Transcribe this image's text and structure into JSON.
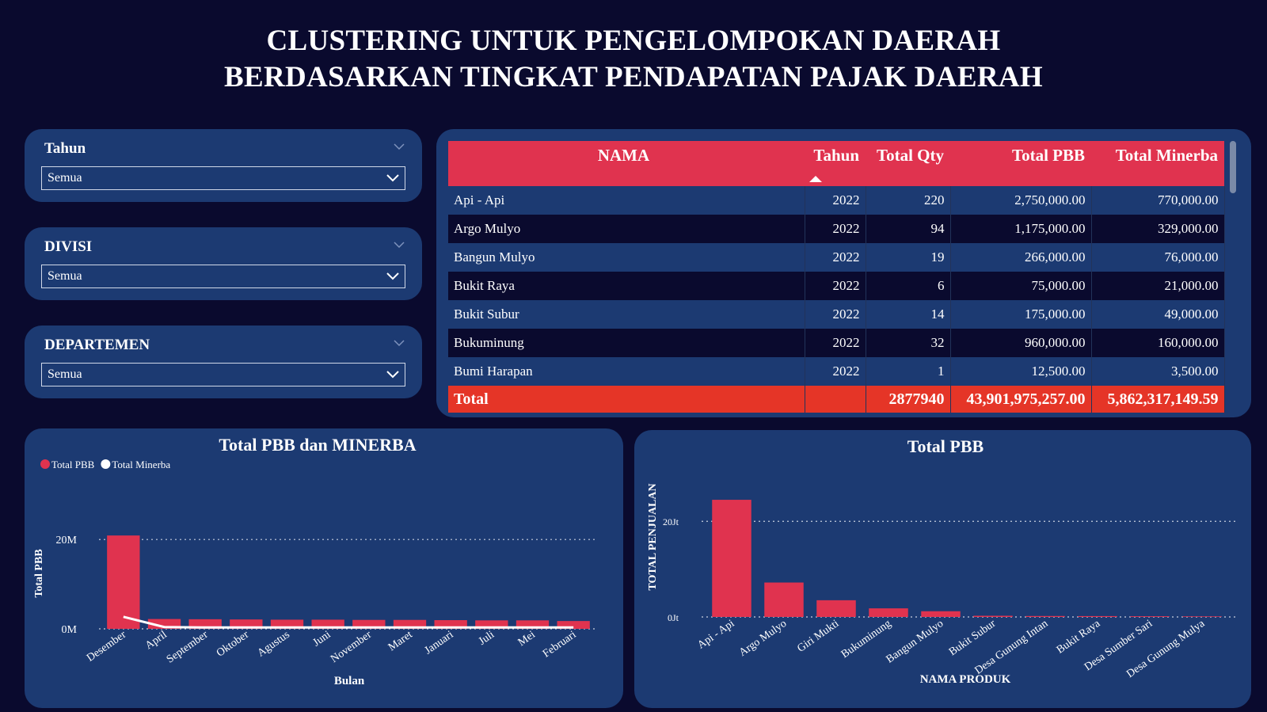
{
  "header": {
    "title_line1": "CLUSTERING UNTUK PENGELOMPOKAN DAERAH",
    "title_line2": "BERDASARKAN TINGKAT PENDAPATAN PAJAK DAERAH"
  },
  "slicers": [
    {
      "label": "Tahun",
      "value": "Semua"
    },
    {
      "label": "DIVISI",
      "value": "Semua"
    },
    {
      "label": "DEPARTEMEN",
      "value": "Semua"
    }
  ],
  "table": {
    "columns": [
      "NAMA",
      "Tahun",
      "Total Qty",
      "Total PBB",
      "Total Minerba"
    ],
    "rows": [
      [
        "Api - Api",
        "2022",
        "220",
        "2,750,000.00",
        "770,000.00"
      ],
      [
        "Argo Mulyo",
        "2022",
        "94",
        "1,175,000.00",
        "329,000.00"
      ],
      [
        "Bangun Mulyo",
        "2022",
        "19",
        "266,000.00",
        "76,000.00"
      ],
      [
        "Bukit Raya",
        "2022",
        "6",
        "75,000.00",
        "21,000.00"
      ],
      [
        "Bukit Subur",
        "2022",
        "14",
        "175,000.00",
        "49,000.00"
      ],
      [
        "Bukuminung",
        "2022",
        "32",
        "960,000.00",
        "160,000.00"
      ],
      [
        "Bumi Harapan",
        "2022",
        "1",
        "12,500.00",
        "3,500.00"
      ]
    ],
    "total": [
      "Total",
      "2877940",
      "43,901,975,257.00",
      "5,862,317,149.59"
    ]
  },
  "chart_data": [
    {
      "type": "bar_line",
      "title": "Total PBB dan MINERBA",
      "x_label": "Bulan",
      "y_label": "Total PBB",
      "categories": [
        "Desember",
        "April",
        "September",
        "Oktober",
        "Agustus",
        "Juni",
        "November",
        "Maret",
        "Januari",
        "Juli",
        "Mei",
        "Februari"
      ],
      "series": [
        {
          "name": "Total PBB",
          "color": "#e0334f",
          "kind": "bar",
          "values": [
            20900000,
            2200000,
            2150000,
            2100000,
            2050000,
            2050000,
            2000000,
            2000000,
            1950000,
            1900000,
            1900000,
            1750000
          ]
        },
        {
          "name": "Total Minerba",
          "color": "#ffffff",
          "kind": "line",
          "values": [
            2700000,
            400000,
            300000,
            300000,
            300000,
            300000,
            300000,
            300000,
            300000,
            300000,
            300000,
            300000
          ]
        }
      ],
      "ylim": [
        0,
        25000000
      ],
      "yticks": [
        {
          "value": 0,
          "label": "0M"
        },
        {
          "value": 20000000,
          "label": "20M"
        }
      ],
      "grid": true,
      "legend": "top-left"
    },
    {
      "type": "bar",
      "title": "Total PBB",
      "x_label": "NAMA PRODUK",
      "y_label": "TOTAL PENJUALAN",
      "categories": [
        "Api - Api",
        "Argo Mulyo",
        "Giri Mukti",
        "Bukuminung",
        "Bangun Mulyo",
        "Bukit Subur",
        "Desa Gunung Intan",
        "Bukit Raya",
        "Desa Sumber Sari",
        "Desa Gunung Mulya"
      ],
      "values": [
        24500000,
        7200000,
        3500000,
        1800000,
        1200000,
        250000,
        200000,
        180000,
        150000,
        120000
      ],
      "color": "#e0334f",
      "ylim": [
        0,
        26000000
      ],
      "yticks": [
        {
          "value": 0,
          "label": "0Jt"
        },
        {
          "value": 20000000,
          "label": "20Jt"
        }
      ],
      "grid": true
    }
  ]
}
